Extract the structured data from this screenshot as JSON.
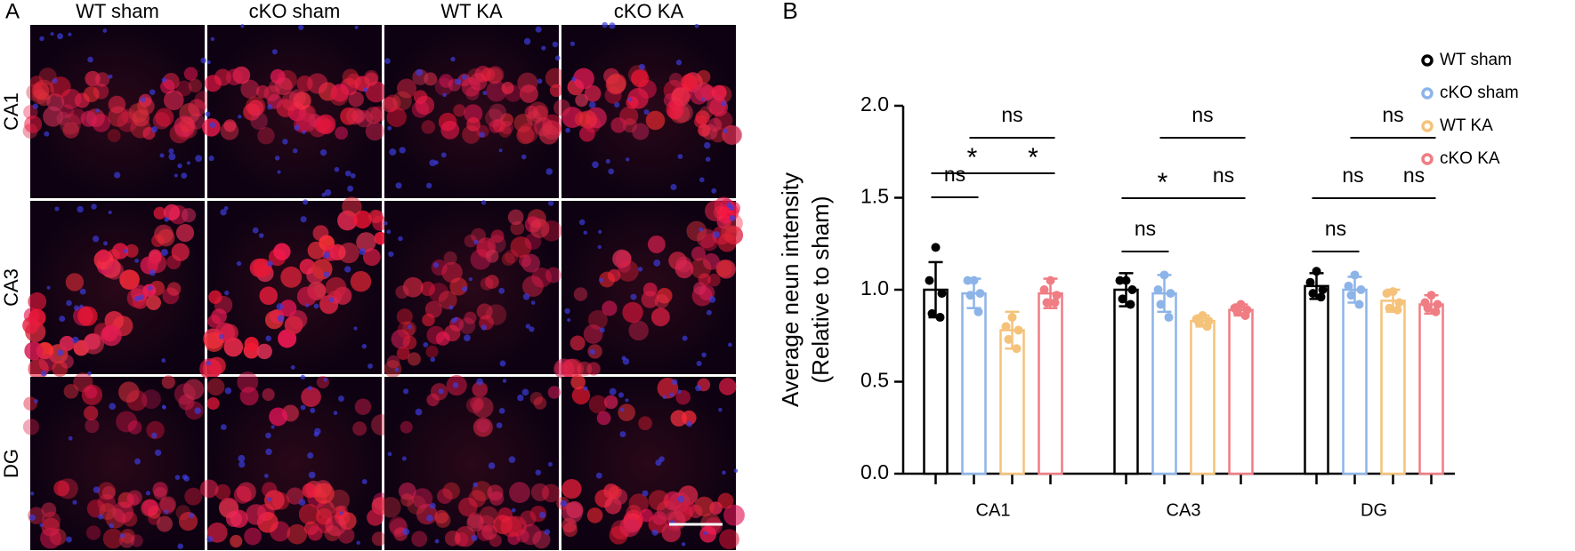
{
  "panel_a": {
    "label": "A",
    "columns": [
      "WT sham",
      "cKO sham",
      "WT KA",
      "cKO KA"
    ],
    "rows": [
      "CA1",
      "CA3",
      "DG"
    ]
  },
  "chart_data": {
    "type": "bar",
    "panel_label": "B",
    "y_label": [
      "Average neun intensity",
      "(Relative to sham)"
    ],
    "categories": [
      "CA1",
      "CA3",
      "DG"
    ],
    "series": [
      {
        "name": "WT sham",
        "color": "#000000",
        "values": [
          1.0,
          1.0,
          1.02
        ],
        "errors": [
          0.15,
          0.09,
          0.07
        ],
        "points": [
          [
            1.23,
            1.05,
            0.98,
            0.87,
            0.85
          ],
          [
            1.05,
            1.05,
            1.0,
            0.95,
            0.92
          ],
          [
            1.1,
            1.04,
            1.0,
            0.98,
            0.96
          ]
        ]
      },
      {
        "name": "cKO sham",
        "color": "#8db4e8",
        "values": [
          0.98,
          0.98,
          1.0
        ],
        "errors": [
          0.08,
          0.1,
          0.07
        ],
        "points": [
          [
            1.05,
            1.05,
            0.98,
            0.97,
            0.88
          ],
          [
            1.08,
            1.0,
            0.98,
            0.92,
            0.85
          ],
          [
            1.08,
            1.02,
            1.0,
            0.97,
            0.92
          ]
        ]
      },
      {
        "name": "WT KA",
        "color": "#f5c27a",
        "values": [
          0.78,
          0.83,
          0.94
        ],
        "errors": [
          0.1,
          0.03,
          0.06
        ],
        "points": [
          [
            0.85,
            0.8,
            0.78,
            0.73,
            0.68
          ],
          [
            0.86,
            0.84,
            0.83,
            0.82,
            0.8
          ],
          [
            0.99,
            0.98,
            0.93,
            0.9,
            0.89
          ]
        ]
      },
      {
        "name": "cKO KA",
        "color": "#f07c84",
        "values": [
          0.98,
          0.89,
          0.92
        ],
        "errors": [
          0.08,
          0.03,
          0.05
        ],
        "points": [
          [
            1.05,
            1.0,
            0.97,
            0.93,
            0.93
          ],
          [
            0.92,
            0.9,
            0.89,
            0.88,
            0.86
          ],
          [
            0.97,
            0.93,
            0.92,
            0.9,
            0.88
          ]
        ]
      }
    ],
    "ylim": [
      0,
      2
    ],
    "yticks": [
      {
        "value": 0,
        "label": "0.0"
      },
      0.5,
      {
        "value": 1,
        "label": "1.0"
      },
      1.5,
      {
        "value": 2,
        "label": "2.0"
      }
    ],
    "significance": [
      [
        "ns",
        "*",
        "*",
        "ns"
      ],
      [
        "ns",
        "*",
        "ns",
        "ns"
      ],
      [
        "ns",
        "ns",
        "ns",
        "ns"
      ]
    ]
  }
}
